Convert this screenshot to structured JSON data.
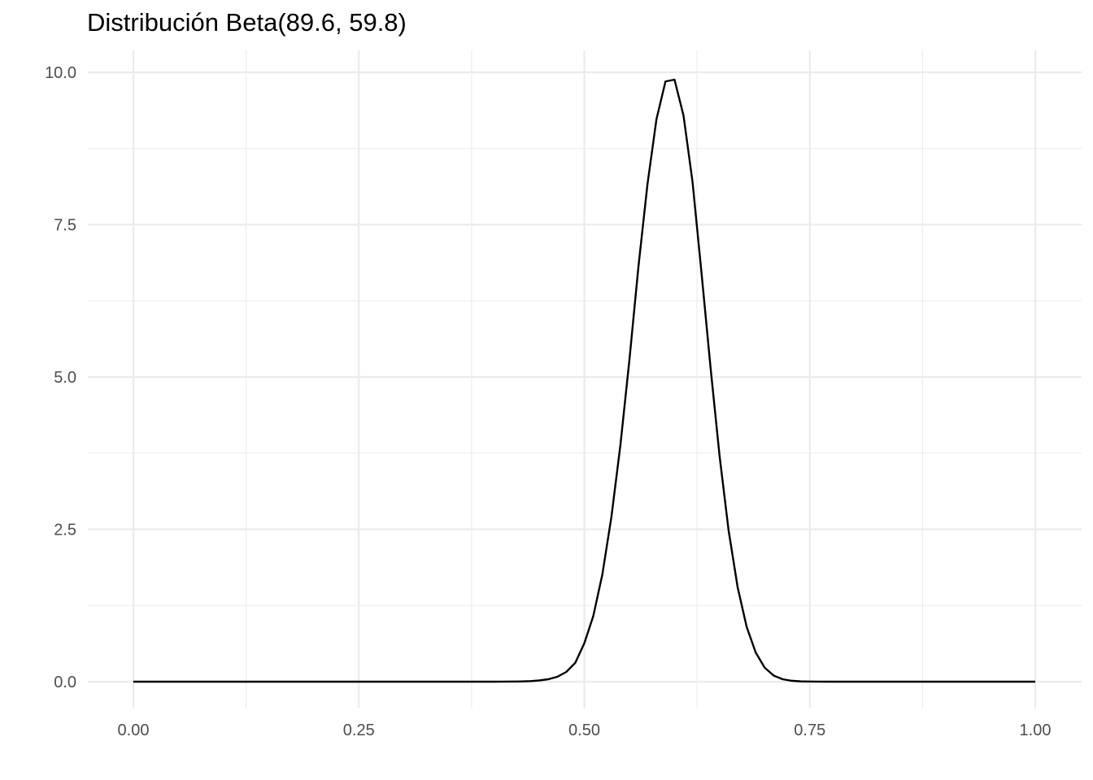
{
  "chart_data": {
    "type": "line",
    "title": "Distribución Beta(89.6, 59.8)",
    "xlabel": "",
    "ylabel": "",
    "xlim": [
      0,
      1
    ],
    "ylim": [
      0,
      10
    ],
    "x_ticks": [
      0,
      0.25,
      0.5,
      0.75,
      1
    ],
    "x_tick_labels": [
      "0.00",
      "0.25",
      "0.50",
      "0.75",
      "1.00"
    ],
    "y_ticks": [
      0,
      2.5,
      5,
      7.5,
      10
    ],
    "y_tick_labels": [
      "0.0",
      "2.5",
      "5.0",
      "7.5",
      "10.0"
    ],
    "grid": true,
    "line_color": "#000000",
    "series": [
      {
        "x": [
          0,
          0.01,
          0.02,
          0.03,
          0.04,
          0.05,
          0.06,
          0.07,
          0.08,
          0.09,
          0.1,
          0.11,
          0.12,
          0.13,
          0.14,
          0.15,
          0.16,
          0.17,
          0.18,
          0.19,
          0.2,
          0.21,
          0.22,
          0.23,
          0.24,
          0.25,
          0.26,
          0.27,
          0.28,
          0.29,
          0.3,
          0.31,
          0.32,
          0.33,
          0.34,
          0.35,
          0.36,
          0.37,
          0.38,
          0.39,
          0.4,
          0.41,
          0.42,
          0.43,
          0.44,
          0.45,
          0.46,
          0.47,
          0.48,
          0.49,
          0.5,
          0.51,
          0.52,
          0.53,
          0.54,
          0.55,
          0.56,
          0.57,
          0.58,
          0.59,
          0.6,
          0.61,
          0.62,
          0.63,
          0.64,
          0.65,
          0.66,
          0.67,
          0.68,
          0.69,
          0.7,
          0.71,
          0.72,
          0.73,
          0.74,
          0.75,
          0.76,
          0.77,
          0.78,
          0.79,
          0.8,
          0.81,
          0.82,
          0.83,
          0.84,
          0.85,
          0.86,
          0.87,
          0.88,
          0.89,
          0.9,
          0.91,
          0.92,
          0.93,
          0.94,
          0.95,
          0.96,
          0.97,
          0.98,
          0.99,
          1
        ],
        "y": [
          0,
          0,
          0,
          0,
          0,
          0,
          0,
          0,
          0,
          0,
          0,
          0,
          0,
          0,
          0,
          0,
          0,
          0,
          0,
          0,
          0,
          0,
          0,
          0,
          0,
          0,
          0,
          0,
          0,
          0,
          0,
          0,
          0,
          0,
          0,
          0,
          0,
          0,
          0,
          0,
          0,
          0.001,
          0.002,
          0.004,
          0.009,
          0.02,
          0.04,
          0.08,
          0.16,
          0.31,
          0.63,
          1.08,
          1.76,
          2.7,
          3.88,
          5.28,
          6.81,
          8.16,
          9.23,
          9.85,
          9.88,
          9.29,
          8.2,
          6.7,
          5.15,
          3.7,
          2.48,
          1.55,
          0.9,
          0.48,
          0.23,
          0.1,
          0.04,
          0.015,
          0.005,
          0.002,
          0.001,
          0,
          0,
          0,
          0,
          0,
          0,
          0,
          0,
          0,
          0,
          0,
          0,
          0,
          0,
          0,
          0,
          0,
          0,
          0,
          0,
          0,
          0,
          0,
          0
        ]
      }
    ]
  }
}
